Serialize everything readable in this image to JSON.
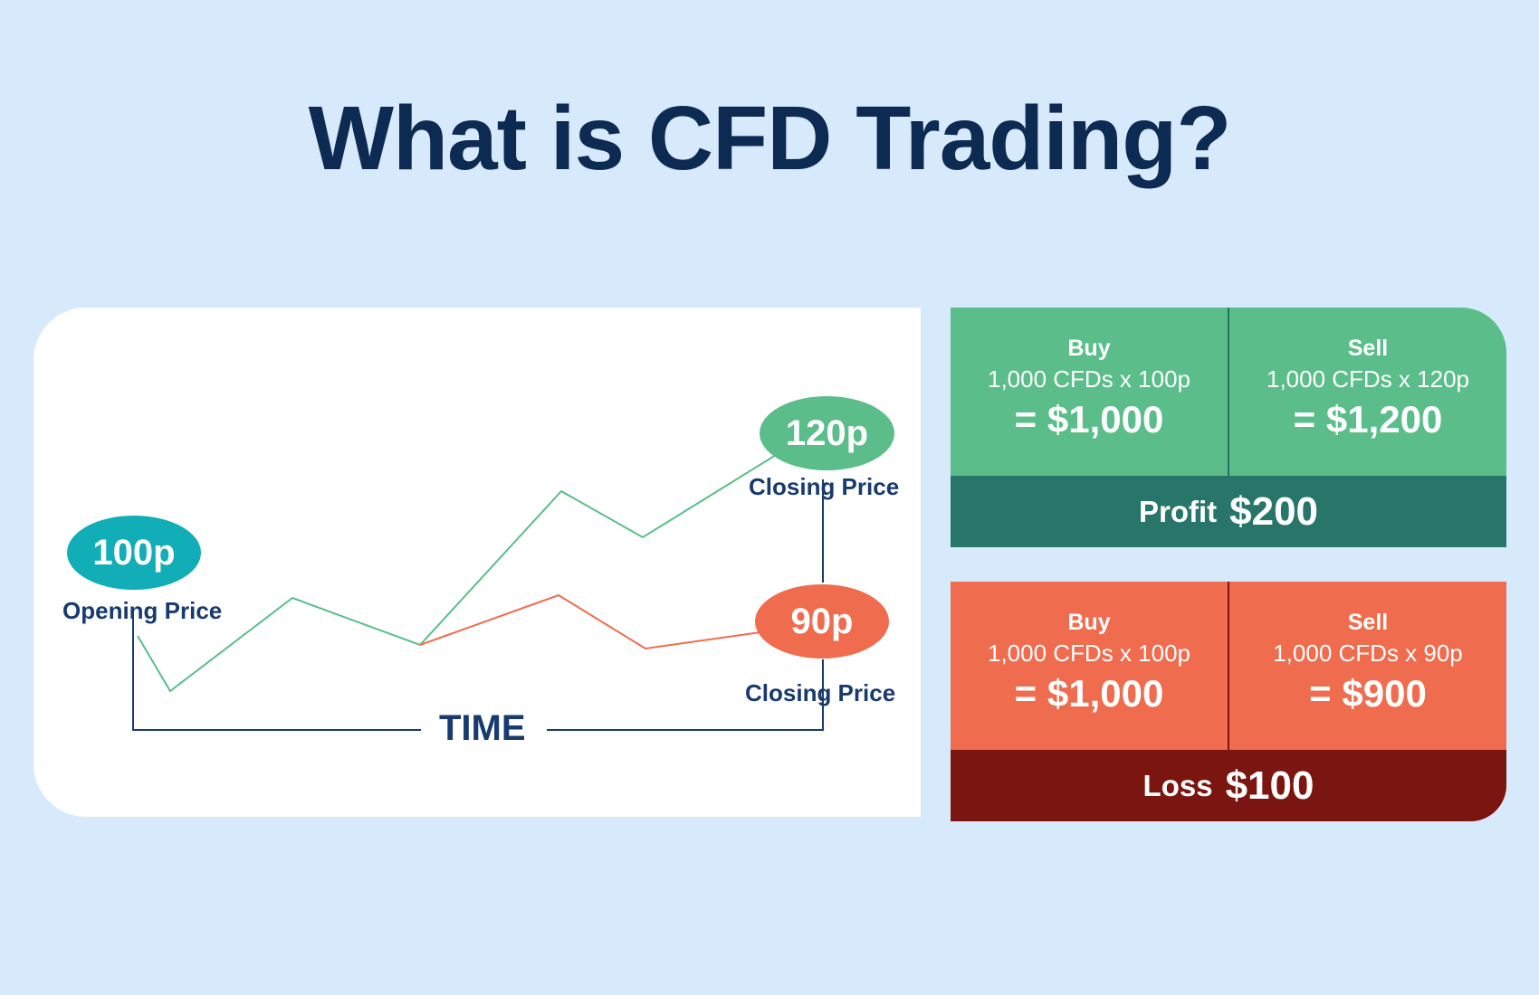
{
  "title": "What is CFD Trading?",
  "colors": {
    "background": "#d6eafb",
    "title": "#0d2a52",
    "profit": "#5abd8a",
    "profit_dark": "#28756a",
    "loss": "#ef6c4e",
    "loss_dark": "#7a1510",
    "opening": "#12aeb8",
    "navy": "#183a6e"
  },
  "chart": {
    "opening_value": "100p",
    "opening_label": "Opening Price",
    "closing_high_value": "120p",
    "closing_high_label": "Closing Price",
    "closing_low_value": "90p",
    "closing_low_label": "Closing Price",
    "time_label": "TIME"
  },
  "profit_panel": {
    "buy": {
      "head": "Buy",
      "qty": "1,000 CFDs x 100p",
      "total": "= $1,000"
    },
    "sell": {
      "head": "Sell",
      "qty": "1,000 CFDs x 120p",
      "total": "= $1,200"
    },
    "result_word": "Profit",
    "result_amount": "$200"
  },
  "loss_panel": {
    "buy": {
      "head": "Buy",
      "qty": "1,000 CFDs x 100p",
      "total": "= $1,000"
    },
    "sell": {
      "head": "Sell",
      "qty": "1,000 CFDs x 90p",
      "total": "= $900"
    },
    "result_word": "Loss",
    "result_amount": "$100"
  }
}
